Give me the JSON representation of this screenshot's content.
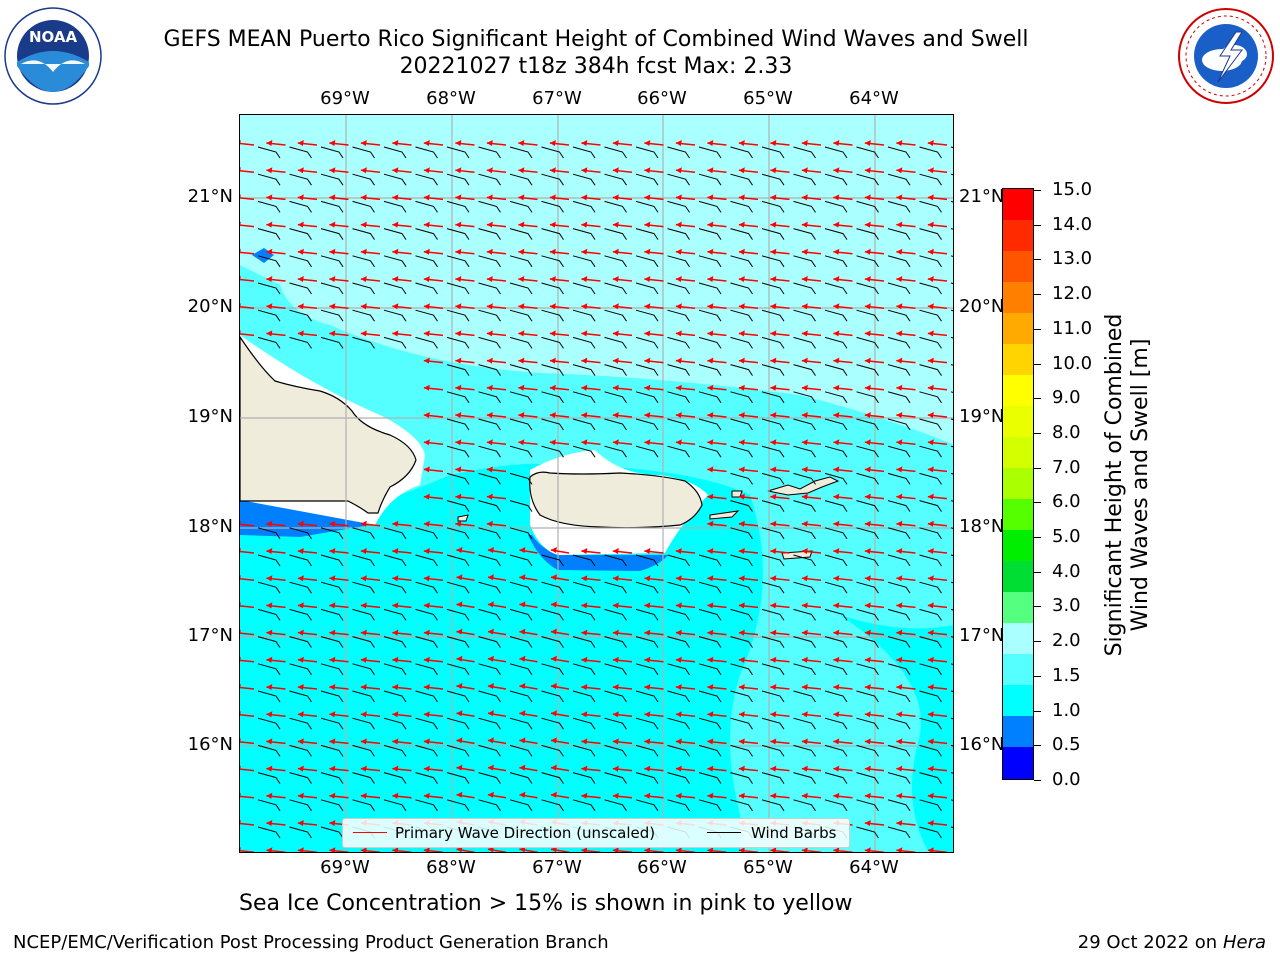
{
  "header": {
    "title_line1": "GEFS MEAN Puerto Rico Significant Height of Combined Wind Waves and Swell",
    "title_line2": "20221027 t18z 384h fcst   Max: 2.33"
  },
  "logos": {
    "noaa_text": "NOAA",
    "noaa_ring_text": "NATIONAL OCEANIC AND ATMOSPHERIC ADMINISTRATION · U.S. DEPARTMENT OF COMMERCE",
    "nws_ring_text": "NATIONAL WEATHER SERVICE"
  },
  "map": {
    "lon_ticks": [
      "69°W",
      "68°W",
      "67°W",
      "66°W",
      "65°W",
      "64°W"
    ],
    "lat_ticks": [
      "21°N",
      "20°N",
      "19°N",
      "18°N",
      "17°N",
      "16°N"
    ],
    "wind_direction": "easterly",
    "wave_direction": "from east-southeast",
    "colors": {
      "ocean_high": "#aaffff",
      "ocean_mid": "#55ffff",
      "ocean_low": "#00ffff",
      "band_blue": "#0080ff",
      "land": "#efecdc",
      "arrow": "#ff0000",
      "barb": "#000000",
      "grid": "#b0b0b0"
    }
  },
  "legend": {
    "wave_label": "Primary Wave Direction (unscaled)",
    "wind_label": "Wind Barbs"
  },
  "colorbar": {
    "label_line1": "Significant Height of Combined",
    "label_line2": "Wind Waves and Swell [m]",
    "ticks": [
      "15.0",
      "14.0",
      "13.0",
      "12.0",
      "11.0",
      "10.0",
      "9.0",
      "8.0",
      "7.0",
      "6.0",
      "5.0",
      "4.0",
      "3.0",
      "2.0",
      "1.5",
      "1.0",
      "0.5",
      "0.0"
    ],
    "colors_top_to_bottom": [
      "#ff0000",
      "#ff2a00",
      "#ff5500",
      "#ff8000",
      "#ffaa00",
      "#ffd400",
      "#ffff00",
      "#eaff00",
      "#d4ff00",
      "#aaff00",
      "#55ff00",
      "#00ee00",
      "#00dd33",
      "#55ff80",
      "#aaffff",
      "#55ffff",
      "#00ffff",
      "#0080ff",
      "#0000ff"
    ]
  },
  "notes": {
    "sea_ice": "Sea Ice Concentration > 15% is shown in pink to yellow"
  },
  "footer": {
    "left": "NCEP/EMC/Verification Post Processing Product Generation Branch",
    "right_prefix": "29 Oct 2022 on ",
    "right_host": "Hera"
  }
}
